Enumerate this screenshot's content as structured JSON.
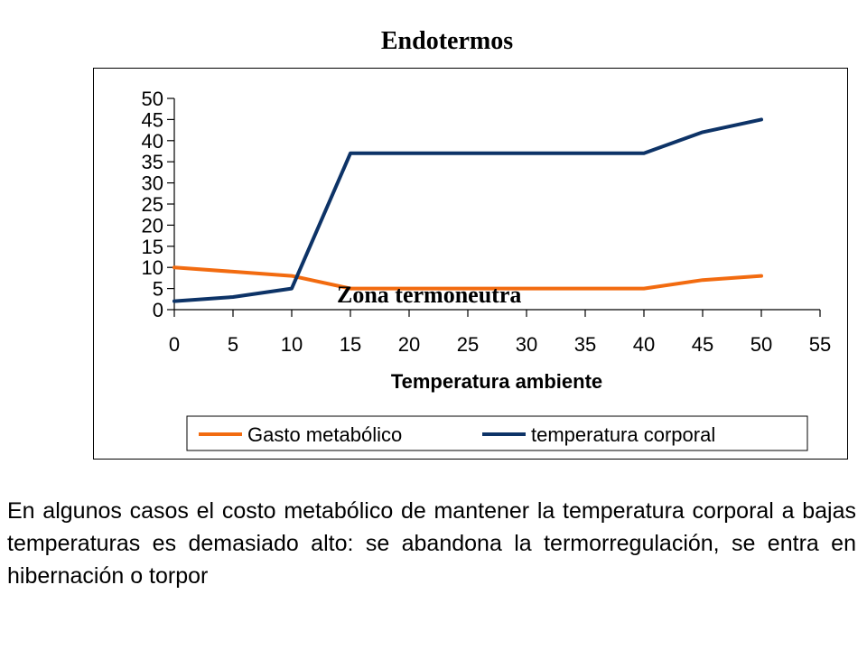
{
  "slide": {
    "title": "Endotermos",
    "paragraph": "En algunos casos el costo metabólico de mantener la temperatura corporal a bajas temperaturas es demasiado alto: se abandona la termorregulación, se entra en hibernación o torpor"
  },
  "chart_data": {
    "type": "line",
    "title": "Endotermos",
    "xlabel": "Temperatura ambiente",
    "ylabel": "",
    "xlim": [
      0,
      55
    ],
    "ylim": [
      0,
      50
    ],
    "x_ticks": [
      0,
      5,
      10,
      15,
      20,
      25,
      30,
      35,
      40,
      45,
      50,
      55
    ],
    "y_ticks": [
      0,
      5,
      10,
      15,
      20,
      25,
      30,
      35,
      40,
      45,
      50
    ],
    "grid": false,
    "legend_position": "bottom",
    "annotation": "Zona termoneutra",
    "x": [
      0,
      5,
      10,
      15,
      20,
      25,
      30,
      35,
      40,
      45,
      50
    ],
    "series": [
      {
        "name": "Gasto metabólico",
        "color": "#f26b10",
        "values": [
          10,
          9,
          8,
          5,
          5,
          5,
          5,
          5,
          5,
          7,
          8
        ]
      },
      {
        "name": "temperatura corporal",
        "color": "#0d3367",
        "values": [
          2,
          3,
          5,
          37,
          37,
          37,
          37,
          37,
          37,
          42,
          45
        ]
      }
    ]
  }
}
